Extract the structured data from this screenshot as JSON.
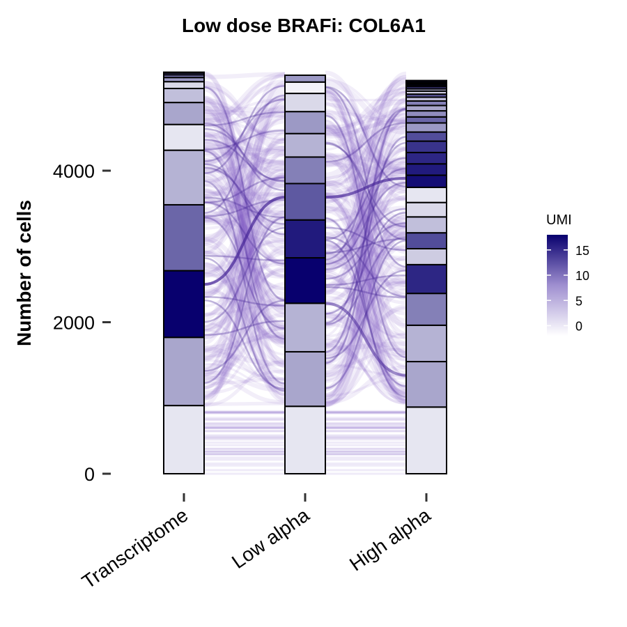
{
  "chart_data": {
    "type": "alluvial",
    "title": "Low dose BRAFi: COL6A1",
    "xlabel": "",
    "ylabel": "Number of cells",
    "ylim": [
      0,
      5300
    ],
    "yticks": [
      0,
      2000,
      4000
    ],
    "grid": false,
    "categories": [
      "Transcriptome",
      "Low alpha",
      "High alpha"
    ],
    "color_scale": {
      "title": "UMI",
      "low_color": "#ffffff",
      "high_color": "#08006e",
      "min": -2,
      "max": 18,
      "ticks": [
        0,
        5,
        10,
        15
      ]
    },
    "stacks": [
      {
        "axis": "Transcriptome",
        "segments": [
          {
            "umi": 0,
            "count": 900
          },
          {
            "umi": 5,
            "count": 900
          },
          {
            "umi": 18,
            "count": 880
          },
          {
            "umi": 10,
            "count": 870
          },
          {
            "umi": 4,
            "count": 720
          },
          {
            "umi": 0,
            "count": 340
          },
          {
            "umi": 5,
            "count": 290
          },
          {
            "umi": 3,
            "count": 185
          },
          {
            "umi": 1,
            "count": 90
          },
          {
            "umi": 6,
            "count": 55
          },
          {
            "umi": 9,
            "count": 35
          },
          {
            "umi": 12,
            "count": 25
          },
          {
            "umi": 15,
            "count": 10
          }
        ]
      },
      {
        "axis": "Low alpha",
        "segments": [
          {
            "umi": 0,
            "count": 890
          },
          {
            "umi": 5,
            "count": 720
          },
          {
            "umi": 4,
            "count": 640
          },
          {
            "umi": 18,
            "count": 600
          },
          {
            "umi": 16,
            "count": 500
          },
          {
            "umi": 11,
            "count": 480
          },
          {
            "umi": 8,
            "count": 350
          },
          {
            "umi": 4,
            "count": 310
          },
          {
            "umi": 6,
            "count": 290
          },
          {
            "umi": 1,
            "count": 240
          },
          {
            "umi": -1,
            "count": 150
          },
          {
            "umi": 6,
            "count": 90
          }
        ]
      },
      {
        "axis": "High alpha",
        "segments": [
          {
            "umi": 0,
            "count": 880
          },
          {
            "umi": 5,
            "count": 600
          },
          {
            "umi": 4,
            "count": 480
          },
          {
            "umi": 8,
            "count": 420
          },
          {
            "umi": 15,
            "count": 380
          },
          {
            "umi": 2,
            "count": 210
          },
          {
            "umi": 12,
            "count": 210
          },
          {
            "umi": 3,
            "count": 210
          },
          {
            "umi": 1,
            "count": 190
          },
          {
            "umi": 0,
            "count": 200
          },
          {
            "umi": 17,
            "count": 160
          },
          {
            "umi": 16,
            "count": 150
          },
          {
            "umi": 15,
            "count": 150
          },
          {
            "umi": 14,
            "count": 150
          },
          {
            "umi": 12,
            "count": 120
          },
          {
            "umi": 6,
            "count": 120
          },
          {
            "umi": 10,
            "count": 80
          },
          {
            "umi": 7,
            "count": 80
          },
          {
            "umi": 5,
            "count": 70
          },
          {
            "umi": 8,
            "count": 60
          },
          {
            "umi": 3,
            "count": 50
          },
          {
            "umi": 11,
            "count": 40
          },
          {
            "umi": 2,
            "count": 40
          },
          {
            "umi": 4,
            "count": 30
          },
          {
            "umi": 13,
            "count": 30
          },
          {
            "umi": 16,
            "count": 20
          },
          {
            "umi": 18,
            "count": 20
          },
          {
            "umi": 19,
            "count": 20
          },
          {
            "umi": 20,
            "count": 20
          }
        ]
      }
    ],
    "flow_color": "#7b5cc2",
    "flow_color_dark": "#4a2a9a"
  }
}
